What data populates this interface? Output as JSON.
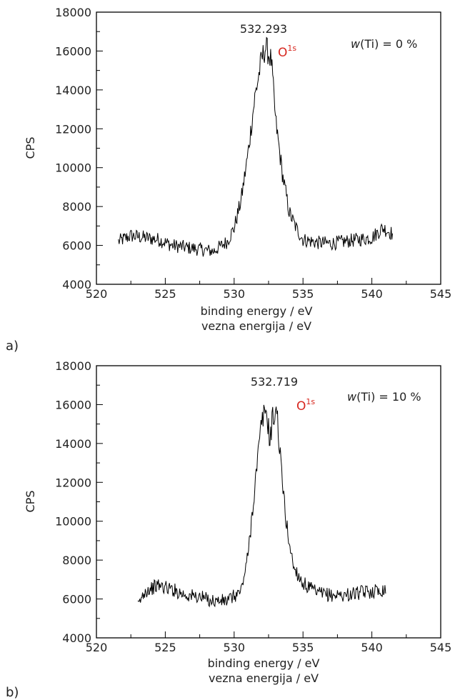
{
  "chart_data": [
    {
      "type": "line",
      "panel_label": "a)",
      "xlabel": "binding energy / eV",
      "xlabel_alt": "vezna energija / eV",
      "ylabel": "CPS",
      "xlim": [
        520,
        545
      ],
      "ylim": [
        4000,
        18000
      ],
      "x_ticks": [
        520,
        525,
        530,
        535,
        540,
        545
      ],
      "y_ticks": [
        4000,
        6000,
        8000,
        10000,
        12000,
        14000,
        16000,
        18000
      ],
      "peak_label": "532.293",
      "annotation_main": "O",
      "annotation_sup": "1s",
      "condition_italic": "w",
      "condition_rest": "(Ti) = 0 %",
      "grid": false,
      "series": [
        {
          "x": [
            521.6,
            522.5,
            523.5,
            524.5,
            525.5,
            526.5,
            527.5,
            528.5,
            529.5,
            530.0,
            530.5,
            531.0,
            531.5,
            532.0,
            532.3,
            532.7,
            533.0,
            533.5,
            534.0,
            534.5,
            535.0,
            536.0,
            537.0,
            538.0,
            539.0,
            540.0,
            540.8,
            541.5
          ],
          "y": [
            6200,
            6500,
            6400,
            6300,
            6000,
            5900,
            5800,
            5700,
            6200,
            6900,
            8300,
            10700,
            13600,
            15600,
            16200,
            15500,
            12500,
            9700,
            7700,
            6900,
            6300,
            6150,
            6100,
            6200,
            6300,
            6400,
            6900,
            6600
          ]
        }
      ]
    },
    {
      "type": "line",
      "panel_label": "b)",
      "xlabel": "binding energy / eV",
      "xlabel_alt": "vezna energija / eV",
      "ylabel": "CPS",
      "xlim": [
        520,
        545
      ],
      "ylim": [
        4000,
        18000
      ],
      "x_ticks": [
        520,
        525,
        530,
        535,
        540,
        545
      ],
      "y_ticks": [
        4000,
        6000,
        8000,
        10000,
        12000,
        14000,
        16000,
        18000
      ],
      "peak_label": "532.719",
      "annotation_main": "O",
      "annotation_sup": "1s",
      "condition_italic": "w",
      "condition_rest": "(Ti) = 10 %",
      "grid": false,
      "series": [
        {
          "x": [
            523.0,
            523.5,
            524.5,
            525.5,
            526.5,
            527.5,
            528.5,
            529.5,
            530.5,
            531.0,
            531.5,
            532.0,
            532.3,
            532.6,
            532.8,
            533.1,
            533.4,
            533.8,
            534.3,
            535.0,
            536.0,
            537.0,
            538.0,
            539.0,
            540.0,
            541.0
          ],
          "y": [
            5600,
            6400,
            6700,
            6500,
            6200,
            6100,
            5900,
            5900,
            6400,
            8200,
            11800,
            15100,
            15800,
            14200,
            15300,
            15700,
            12800,
            9800,
            7700,
            6800,
            6300,
            6200,
            6200,
            6300,
            6400,
            6500
          ]
        }
      ]
    }
  ]
}
